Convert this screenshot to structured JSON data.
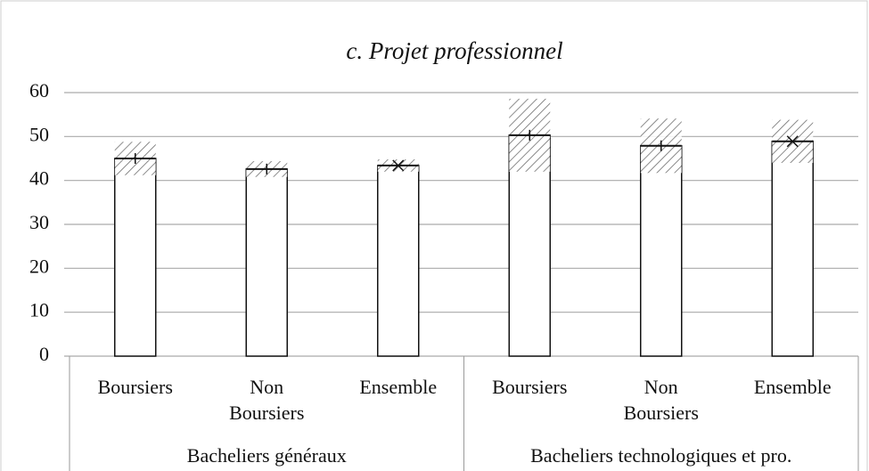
{
  "chart_data": {
    "type": "bar",
    "title": "c. Projet professionnel",
    "categories": [
      "Boursiers",
      "Non Boursiers",
      "Ensemble",
      "Boursiers",
      "Non Boursiers",
      "Ensemble"
    ],
    "groups": [
      "Bacheliers généraux",
      "Bacheliers technologiques et pro."
    ],
    "values": [
      45,
      42.6,
      43.4,
      50.3,
      47.9,
      48.9
    ],
    "errors": [
      3.8,
      1.8,
      1.4,
      8.3,
      6.2,
      4.9
    ],
    "markers": [
      "+",
      "+",
      "x",
      "+",
      "+",
      "x"
    ],
    "color": "#ffffff",
    "ylim": [
      0,
      60
    ],
    "yticks": [
      0,
      10,
      20,
      30,
      40,
      50,
      60
    ],
    "grid": true
  }
}
